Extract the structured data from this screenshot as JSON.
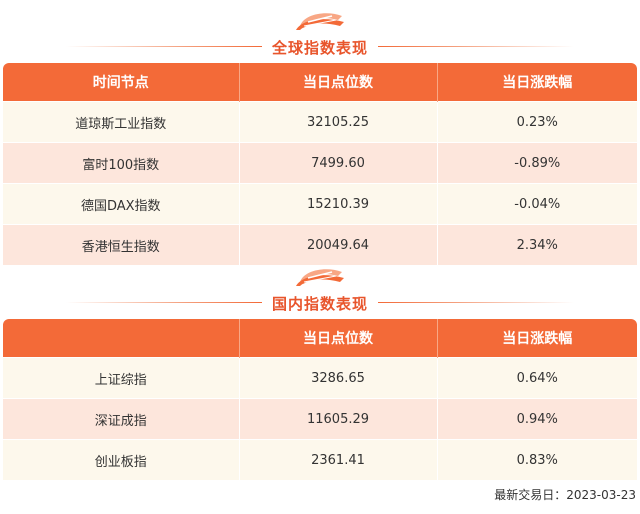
{
  "global": {
    "title": "全球指数表现",
    "headers": [
      "时间节点",
      "当日点位数",
      "当日涨跌幅"
    ],
    "rows": [
      {
        "name": "道琼斯工业指数",
        "points": "32105.25",
        "change": "0.23%",
        "trend": "up"
      },
      {
        "name": "富时100指数",
        "points": "7499.60",
        "change": "-0.89%",
        "trend": "down"
      },
      {
        "name": "德国DAX指数",
        "points": "15210.39",
        "change": "-0.04%",
        "trend": "down"
      },
      {
        "name": "香港恒生指数",
        "points": "20049.64",
        "change": "2.34%",
        "trend": "up"
      }
    ]
  },
  "domestic": {
    "title": "国内指数表现",
    "headers": [
      "",
      "当日点位数",
      "当日涨跌幅"
    ],
    "rows": [
      {
        "name": "上证综指",
        "points": "3286.65",
        "change": "0.64%",
        "trend": "up"
      },
      {
        "name": "深证成指",
        "points": "11605.29",
        "change": "0.94%",
        "trend": "up"
      },
      {
        "name": "创业板指",
        "points": "2361.41",
        "change": "0.83%",
        "trend": "up"
      }
    ]
  },
  "footer": {
    "text": "最新交易日：2023-03-23"
  },
  "colors": {
    "accent": "#f36a38",
    "up": "#e8402f",
    "down": "#4e8c2a",
    "row_light": "#fdf8ec",
    "row_pink": "#fde6dc"
  },
  "icons": {
    "section_logo": "decorative-stripe-logo-icon"
  }
}
